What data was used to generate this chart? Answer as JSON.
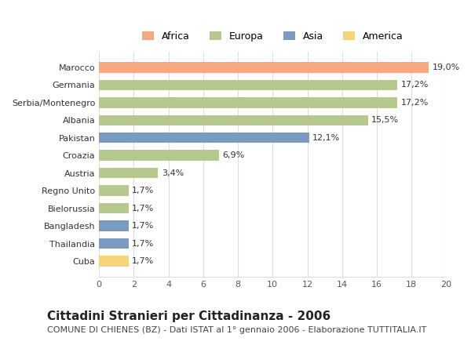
{
  "countries": [
    "Marocco",
    "Germania",
    "Serbia/Montenegro",
    "Albania",
    "Pakistan",
    "Croazia",
    "Austria",
    "Regno Unito",
    "Bielorussia",
    "Bangladesh",
    "Thailandia",
    "Cuba"
  ],
  "values": [
    19.0,
    17.2,
    17.2,
    15.5,
    12.1,
    6.9,
    3.4,
    1.7,
    1.7,
    1.7,
    1.7,
    1.7
  ],
  "labels": [
    "19,0%",
    "17,2%",
    "17,2%",
    "15,5%",
    "12,1%",
    "6,9%",
    "3,4%",
    "1,7%",
    "1,7%",
    "1,7%",
    "1,7%",
    "1,7%"
  ],
  "continents": [
    "Africa",
    "Europa",
    "Europa",
    "Europa",
    "Asia",
    "Europa",
    "Europa",
    "Europa",
    "Europa",
    "Asia",
    "Asia",
    "America"
  ],
  "colors": {
    "Africa": "#F4A97F",
    "Europa": "#B5C98E",
    "Asia": "#7B9BC0",
    "America": "#F5D47A"
  },
  "legend_order": [
    "Africa",
    "Europa",
    "Asia",
    "America"
  ],
  "title": "Cittadini Stranieri per Cittadinanza - 2006",
  "subtitle": "COMUNE DI CHIENES (BZ) - Dati ISTAT al 1° gennaio 2006 - Elaborazione TUTTITALIA.IT",
  "xlim": [
    0,
    20
  ],
  "xticks": [
    0,
    2,
    4,
    6,
    8,
    10,
    12,
    14,
    16,
    18,
    20
  ],
  "background_color": "#ffffff",
  "grid_color": "#dddddd",
  "bar_height": 0.6,
  "title_fontsize": 11,
  "subtitle_fontsize": 8,
  "label_fontsize": 8,
  "tick_fontsize": 8,
  "legend_fontsize": 9
}
